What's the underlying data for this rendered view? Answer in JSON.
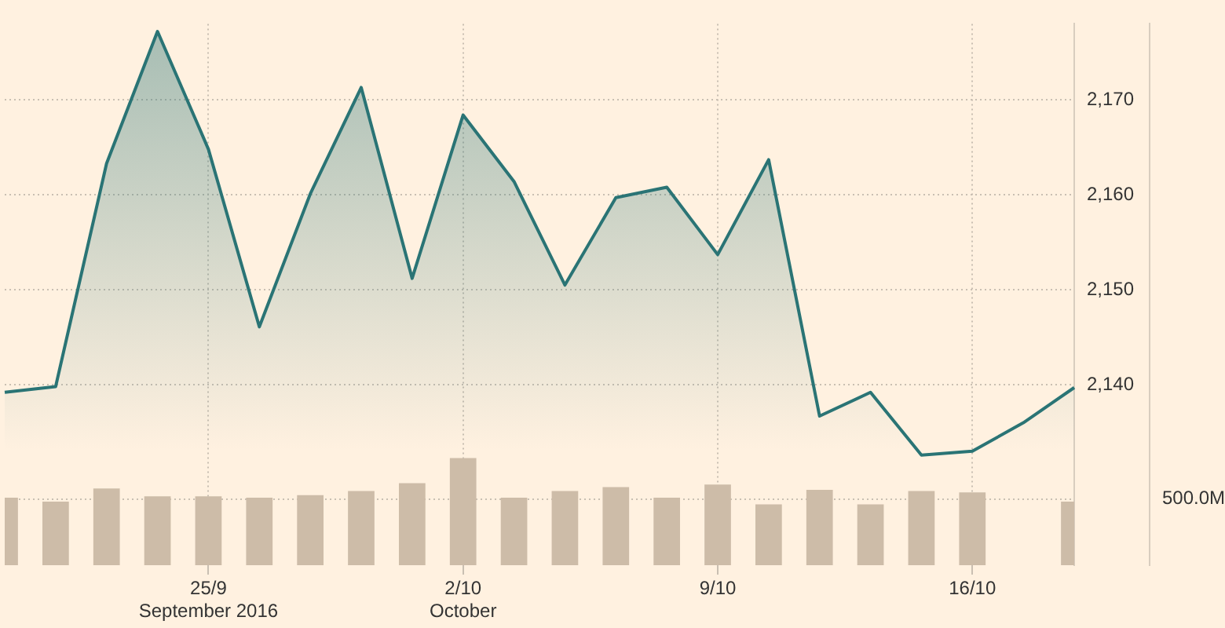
{
  "chart_data": {
    "type": "area",
    "categories": [
      null,
      null,
      null,
      null,
      "25/9\nSeptember 2016",
      null,
      null,
      null,
      null,
      "2/10\nOctober",
      null,
      null,
      null,
      null,
      "9/10",
      null,
      null,
      null,
      null,
      "16/10",
      null,
      null
    ],
    "series": [
      {
        "color": "#2a7475",
        "values": [
          2139.2,
          2139.8,
          2163.3,
          2177.2,
          2164.8,
          2146.1,
          2160.1,
          2171.3,
          2151.2,
          2168.4,
          2161.4,
          2150.5,
          2159.7,
          2160.8,
          2153.7,
          2163.7,
          2136.7,
          2139.2,
          2132.6,
          2133.0,
          2136.0,
          2139.7
        ]
      },
      {
        "type": "bar",
        "axis": "y2",
        "color": "#cdbca8",
        "values": [
          510,
          480,
          580,
          520,
          520,
          510,
          530,
          560,
          620,
          810,
          510,
          560,
          590,
          510,
          610,
          460,
          570,
          460,
          560,
          550,
          null,
          480
        ]
      }
    ],
    "ylim": [
      2121,
      2178
    ],
    "yticks": [
      {
        "value": 2140,
        "label": "2,140"
      },
      {
        "value": 2150,
        "label": "2,150"
      },
      {
        "value": 2160,
        "label": "2,160"
      },
      {
        "value": 2170,
        "label": "2,170"
      }
    ],
    "y2lim": [
      0,
      4090
    ],
    "y2ticks": [
      {
        "value": 500,
        "label": "500.0M"
      }
    ],
    "grid": true,
    "legend": false,
    "marker": "none",
    "line_style": "solid"
  }
}
